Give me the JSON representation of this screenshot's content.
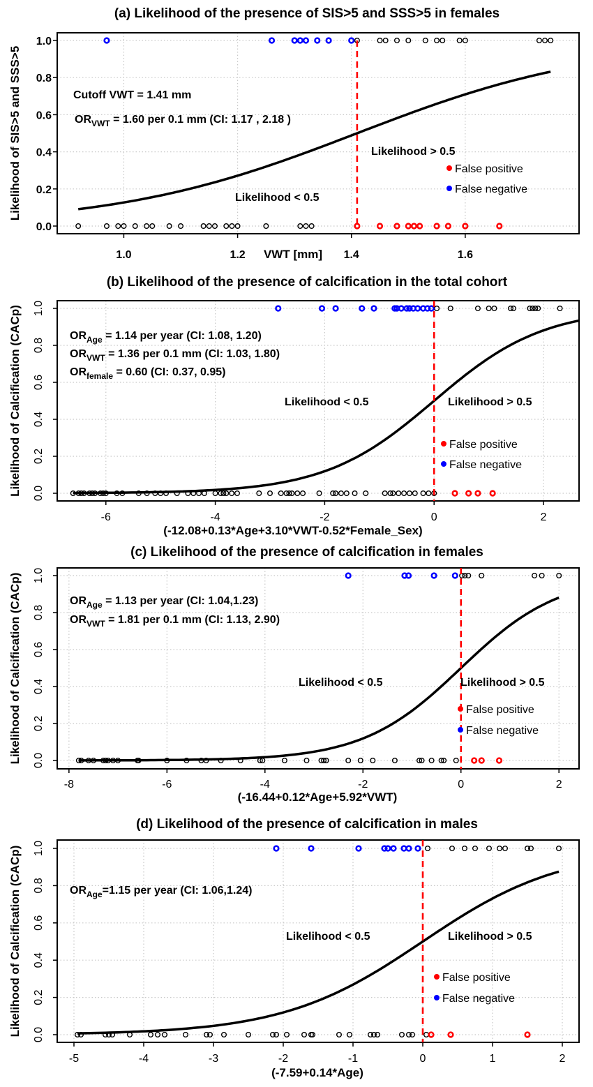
{
  "colors": {
    "false_positive": "#ff0000",
    "false_negative": "#0000ff",
    "points": "#000000",
    "cutoff": "#ff0000",
    "curve": "#000000",
    "grid": "#c8c8c8"
  },
  "chart_data": [
    {
      "type": "scatter",
      "title": "(a) Likelihood of the presence of SIS>5 and SSS>5 in females",
      "xlabel": "VWT [mm]",
      "ylabel": "Likelihood of SIS>5 and SSS>5",
      "xticks": [
        "1.0",
        "1.2",
        "1.4",
        "1.6"
      ],
      "xtick_values": [
        1.0,
        1.2,
        1.4,
        1.6
      ],
      "yticks": [
        "0.0",
        "0.2",
        "0.4",
        "0.6",
        "0.8",
        "1.0"
      ],
      "ylim": [
        0,
        1
      ],
      "xlim": [
        0.883,
        1.8
      ],
      "grid": true,
      "cutoff": 1.41,
      "curve": {
        "type": "logistic",
        "center": 1.41,
        "slope": 4.7,
        "x_range": [
          0.92,
          1.75
        ]
      },
      "points": {
        "outcome1_correct_x": [
          1.41,
          1.45,
          1.46,
          1.48,
          1.5,
          1.53,
          1.55,
          1.56,
          1.59,
          1.6,
          1.73,
          1.74,
          1.75
        ],
        "outcome0_correct_x": [
          0.92,
          0.97,
          0.99,
          1.0,
          1.02,
          1.04,
          1.05,
          1.08,
          1.1,
          1.14,
          1.15,
          1.16,
          1.18,
          1.19,
          1.2,
          1.25,
          1.31,
          1.32,
          1.33
        ],
        "false_negative_x": [
          0.97,
          1.26,
          1.3,
          1.31,
          1.32,
          1.34,
          1.36,
          1.4
        ],
        "false_positive_x": [
          1.41,
          1.45,
          1.48,
          1.5,
          1.51,
          1.52,
          1.55,
          1.57,
          1.6,
          1.66
        ]
      },
      "annotations": [
        {
          "main": "Cutoff VWT = 1.41 mm",
          "sub": "",
          "rest": ""
        },
        {
          "main": "OR",
          "sub": "VWT",
          "rest": " = 1.60 per 0.1 mm (CI: 1.17 , 2.18 )"
        }
      ],
      "region_labels": {
        "above": "Likelihood > 0.5",
        "below": "Likelihood < 0.5"
      },
      "legend": {
        "false_positive": "False positive",
        "false_negative": "False negative"
      }
    },
    {
      "type": "scatter",
      "title": "(b) Likelihood of the presence of calcification in the total cohort",
      "xlabel": "(-12.08+0.13*Age+3.10*VWT-0.52*Female_Sex)",
      "ylabel": "Likelihood of Calcification (CACp)",
      "xticks": [
        "-6",
        "-4",
        "-2",
        "0",
        "2"
      ],
      "xtick_values": [
        -6,
        -4,
        -2,
        0,
        2
      ],
      "yticks": [
        "0.0",
        "0.2",
        "0.4",
        "0.6",
        "0.8",
        "1.0"
      ],
      "ylim": [
        0,
        1
      ],
      "xlim": [
        -6.89,
        2.65
      ],
      "grid": true,
      "cutoff": 0,
      "curve": {
        "type": "logistic",
        "center": 0,
        "slope": 1,
        "x_range": [
          -6.6,
          2.65
        ]
      },
      "points": {
        "outcome1_correct_x": [
          0.05,
          0.3,
          0.8,
          1.0,
          1.1,
          1.4,
          1.45,
          1.75,
          1.8,
          1.85,
          1.9,
          2.3
        ],
        "outcome0_correct_x": [
          -6.6,
          -6.5,
          -6.45,
          -6.4,
          -6.3,
          -6.25,
          -6.2,
          -6.1,
          -6.05,
          -6.0,
          -5.8,
          -5.7,
          -5.4,
          -5.25,
          -5.1,
          -5.0,
          -4.9,
          -4.7,
          -4.5,
          -4.4,
          -4.3,
          -4.2,
          -4.0,
          -3.9,
          -3.85,
          -3.8,
          -3.7,
          -3.6,
          -3.2,
          -3.0,
          -2.8,
          -2.7,
          -2.65,
          -2.6,
          -2.5,
          -2.4,
          -2.1,
          -1.85,
          -1.8,
          -1.7,
          -1.6,
          -1.45,
          -1.25,
          -0.9,
          -0.8,
          -0.75,
          -0.65,
          -0.55,
          -0.45,
          -0.35,
          -0.2,
          -0.1,
          0
        ],
        "false_negative_x": [
          -2.85,
          -2.05,
          -1.8,
          -1.32,
          -1.1,
          -0.72,
          -0.68,
          -0.6,
          -0.5,
          -0.45,
          -0.38,
          -0.3,
          -0.2,
          -0.12,
          -0.05
        ],
        "false_positive_x": [
          0.38,
          0.63,
          0.8,
          1.07
        ]
      },
      "annotations": [
        {
          "main": "OR",
          "sub": "Age",
          "rest": "    = 1.14 per year (CI: 1.08, 1.20)"
        },
        {
          "main": "OR",
          "sub": "VWT",
          "rest": "    = 1.36 per 0.1 mm (CI: 1.03, 1.80)"
        },
        {
          "main": "OR",
          "sub": "female",
          "rest": " = 0.60 (CI: 0.37, 0.95)"
        }
      ],
      "region_labels": {
        "above": "Likelihood > 0.5",
        "below": "Likelihood < 0.5"
      },
      "legend": {
        "false_positive": "False positive",
        "false_negative": "False negative"
      }
    },
    {
      "type": "scatter",
      "title": "(c) Likelihood of the presence of calcification in females",
      "xlabel": "(-16.44+0.12*Age+5.92*VWT)",
      "ylabel": "Likelihood of Calcification (CACp)",
      "xticks": [
        "-8",
        "-6",
        "-4",
        "-2",
        "0",
        "2"
      ],
      "xtick_values": [
        -8,
        -6,
        -4,
        -2,
        0,
        2
      ],
      "yticks": [
        "0.0",
        "0.2",
        "0.4",
        "0.6",
        "0.8",
        "1.0"
      ],
      "ylim": [
        0,
        1
      ],
      "xlim": [
        -8.24,
        2.41
      ],
      "grid": true,
      "cutoff": 0,
      "curve": {
        "type": "logistic",
        "center": 0,
        "slope": 1,
        "x_range": [
          -7.8,
          2.0
        ]
      },
      "points": {
        "outcome1_correct_x": [
          0.02,
          0.08,
          0.15,
          0.42,
          1.5,
          1.65,
          2.0
        ],
        "outcome0_correct_x": [
          -7.8,
          -7.75,
          -7.6,
          -7.5,
          -7.3,
          -7.25,
          -7.2,
          -7.1,
          -7.0,
          -6.6,
          -6.58,
          -6.0,
          -5.6,
          -5.3,
          -5.2,
          -4.9,
          -4.5,
          -4.1,
          -4.05,
          -3.6,
          -3.15,
          -2.85,
          -2.8,
          -2.75,
          -2.3,
          -2.05,
          -1.8,
          -1.35,
          -0.85,
          -0.8,
          -0.6,
          -0.4,
          -0.35,
          -0.1
        ],
        "false_negative_x": [
          -2.3,
          -1.15,
          -1.07,
          -0.55,
          -0.12
        ],
        "false_positive_x": [
          0.27,
          0.42,
          0.78
        ]
      },
      "annotations": [
        {
          "main": "OR",
          "sub": "Age",
          "rest": " = 1.13 per year (CI: 1.04,1.23)"
        },
        {
          "main": "OR",
          "sub": "VWT",
          "rest": " = 1.81 per 0.1 mm (CI: 1.13, 2.90)"
        }
      ],
      "region_labels": {
        "above": "Likelihood > 0.5",
        "below": "Likelihood < 0.5"
      },
      "legend": {
        "false_positive": "False positive",
        "false_negative": "False negative"
      }
    },
    {
      "type": "scatter",
      "title": "(d) Likelihood of the presence of calcification in males",
      "xlabel": "(-7.59+0.14*Age)",
      "ylabel": "Likelihood of Calcification (CACp)",
      "xticks": [
        "-5",
        "-4",
        "-3",
        "-2",
        "-1",
        "0",
        "1",
        "2"
      ],
      "xtick_values": [
        -5,
        -4,
        -3,
        -2,
        -1,
        0,
        1,
        2
      ],
      "yticks": [
        "0.0",
        "0.2",
        "0.4",
        "0.6",
        "0.8",
        "1.0"
      ],
      "ylim": [
        0,
        1
      ],
      "xlim": [
        -5.24,
        2.24
      ],
      "grid": true,
      "cutoff": 0,
      "curve": {
        "type": "logistic",
        "center": 0,
        "slope": 1,
        "x_range": [
          -4.95,
          1.95
        ]
      },
      "points": {
        "outcome1_correct_x": [
          0.07,
          0.42,
          0.6,
          0.75,
          0.95,
          1.1,
          1.18,
          1.5,
          1.55,
          1.95
        ],
        "outcome0_correct_x": [
          -4.95,
          -4.9,
          -4.55,
          -4.5,
          -4.45,
          -4.2,
          -3.9,
          -3.8,
          -3.7,
          -3.4,
          -3.1,
          -3.05,
          -2.85,
          -2.5,
          -2.15,
          -2.1,
          -1.95,
          -1.7,
          -1.6,
          -1.58,
          -1.2,
          -1.05,
          -0.75,
          -0.7,
          -0.65,
          -0.3,
          -0.2,
          -0.15,
          0.05
        ],
        "false_negative_x": [
          -2.1,
          -1.6,
          -0.92,
          -0.55,
          -0.5,
          -0.42,
          -0.27,
          -0.2,
          -0.07
        ],
        "false_positive_x": [
          0.12,
          0.4,
          1.5
        ]
      },
      "annotations": [
        {
          "main": "OR",
          "sub": "Age",
          "rest": "=1.15 per year (CI: 1.06,1.24)"
        }
      ],
      "region_labels": {
        "above": "Likelihood > 0.5",
        "below": "Likelihood < 0.5"
      },
      "legend": {
        "false_positive": "False positive",
        "false_negative": "False negative"
      }
    }
  ]
}
